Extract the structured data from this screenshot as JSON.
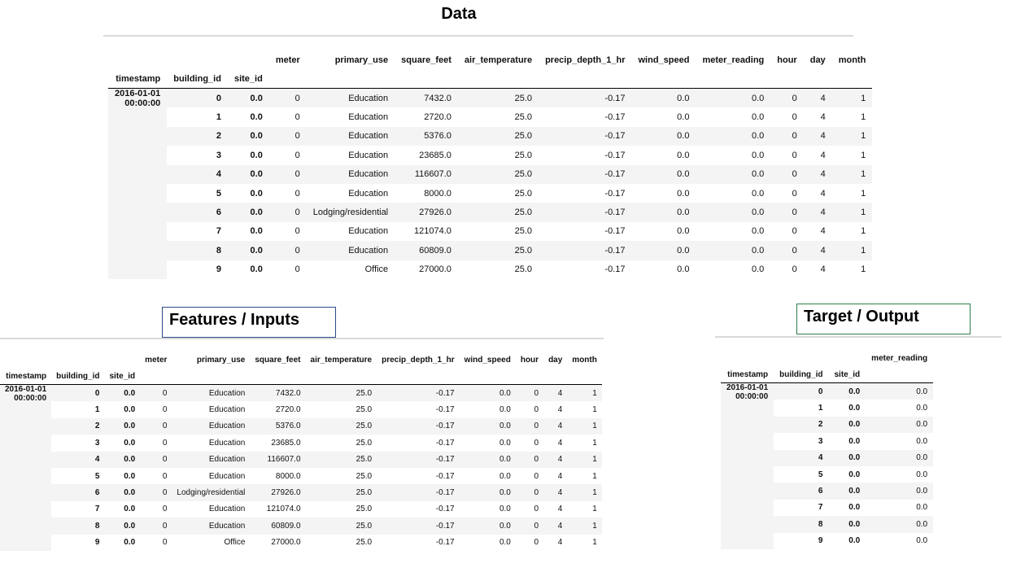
{
  "titles": {
    "data": "Data",
    "features": "Features / Inputs",
    "target": "Target / Output"
  },
  "index_headers": [
    "timestamp",
    "building_id",
    "site_id"
  ],
  "timestamp": {
    "date": "2016-01-01",
    "time": "00:00:00"
  },
  "data_table": {
    "columns": [
      "meter",
      "primary_use",
      "square_feet",
      "air_temperature",
      "precip_depth_1_hr",
      "wind_speed",
      "meter_reading",
      "hour",
      "day",
      "month"
    ],
    "rows": [
      {
        "building_id": "0",
        "site_id": "0.0",
        "cells": [
          "0",
          "Education",
          "7432.0",
          "25.0",
          "-0.17",
          "0.0",
          "0.0",
          "0",
          "4",
          "1"
        ]
      },
      {
        "building_id": "1",
        "site_id": "0.0",
        "cells": [
          "0",
          "Education",
          "2720.0",
          "25.0",
          "-0.17",
          "0.0",
          "0.0",
          "0",
          "4",
          "1"
        ]
      },
      {
        "building_id": "2",
        "site_id": "0.0",
        "cells": [
          "0",
          "Education",
          "5376.0",
          "25.0",
          "-0.17",
          "0.0",
          "0.0",
          "0",
          "4",
          "1"
        ]
      },
      {
        "building_id": "3",
        "site_id": "0.0",
        "cells": [
          "0",
          "Education",
          "23685.0",
          "25.0",
          "-0.17",
          "0.0",
          "0.0",
          "0",
          "4",
          "1"
        ]
      },
      {
        "building_id": "4",
        "site_id": "0.0",
        "cells": [
          "0",
          "Education",
          "116607.0",
          "25.0",
          "-0.17",
          "0.0",
          "0.0",
          "0",
          "4",
          "1"
        ]
      },
      {
        "building_id": "5",
        "site_id": "0.0",
        "cells": [
          "0",
          "Education",
          "8000.0",
          "25.0",
          "-0.17",
          "0.0",
          "0.0",
          "0",
          "4",
          "1"
        ]
      },
      {
        "building_id": "6",
        "site_id": "0.0",
        "cells": [
          "0",
          "Lodging/residential",
          "27926.0",
          "25.0",
          "-0.17",
          "0.0",
          "0.0",
          "0",
          "4",
          "1"
        ]
      },
      {
        "building_id": "7",
        "site_id": "0.0",
        "cells": [
          "0",
          "Education",
          "121074.0",
          "25.0",
          "-0.17",
          "0.0",
          "0.0",
          "0",
          "4",
          "1"
        ]
      },
      {
        "building_id": "8",
        "site_id": "0.0",
        "cells": [
          "0",
          "Education",
          "60809.0",
          "25.0",
          "-0.17",
          "0.0",
          "0.0",
          "0",
          "4",
          "1"
        ]
      },
      {
        "building_id": "9",
        "site_id": "0.0",
        "cells": [
          "0",
          "Office",
          "27000.0",
          "25.0",
          "-0.17",
          "0.0",
          "0.0",
          "0",
          "4",
          "1"
        ]
      }
    ]
  },
  "features_table": {
    "columns": [
      "meter",
      "primary_use",
      "square_feet",
      "air_temperature",
      "precip_depth_1_hr",
      "wind_speed",
      "hour",
      "day",
      "month"
    ],
    "rows": [
      {
        "building_id": "0",
        "site_id": "0.0",
        "cells": [
          "0",
          "Education",
          "7432.0",
          "25.0",
          "-0.17",
          "0.0",
          "0",
          "4",
          "1"
        ]
      },
      {
        "building_id": "1",
        "site_id": "0.0",
        "cells": [
          "0",
          "Education",
          "2720.0",
          "25.0",
          "-0.17",
          "0.0",
          "0",
          "4",
          "1"
        ]
      },
      {
        "building_id": "2",
        "site_id": "0.0",
        "cells": [
          "0",
          "Education",
          "5376.0",
          "25.0",
          "-0.17",
          "0.0",
          "0",
          "4",
          "1"
        ]
      },
      {
        "building_id": "3",
        "site_id": "0.0",
        "cells": [
          "0",
          "Education",
          "23685.0",
          "25.0",
          "-0.17",
          "0.0",
          "0",
          "4",
          "1"
        ]
      },
      {
        "building_id": "4",
        "site_id": "0.0",
        "cells": [
          "0",
          "Education",
          "116607.0",
          "25.0",
          "-0.17",
          "0.0",
          "0",
          "4",
          "1"
        ]
      },
      {
        "building_id": "5",
        "site_id": "0.0",
        "cells": [
          "0",
          "Education",
          "8000.0",
          "25.0",
          "-0.17",
          "0.0",
          "0",
          "4",
          "1"
        ]
      },
      {
        "building_id": "6",
        "site_id": "0.0",
        "cells": [
          "0",
          "Lodging/residential",
          "27926.0",
          "25.0",
          "-0.17",
          "0.0",
          "0",
          "4",
          "1"
        ]
      },
      {
        "building_id": "7",
        "site_id": "0.0",
        "cells": [
          "0",
          "Education",
          "121074.0",
          "25.0",
          "-0.17",
          "0.0",
          "0",
          "4",
          "1"
        ]
      },
      {
        "building_id": "8",
        "site_id": "0.0",
        "cells": [
          "0",
          "Education",
          "60809.0",
          "25.0",
          "-0.17",
          "0.0",
          "0",
          "4",
          "1"
        ]
      },
      {
        "building_id": "9",
        "site_id": "0.0",
        "cells": [
          "0",
          "Office",
          "27000.0",
          "25.0",
          "-0.17",
          "0.0",
          "0",
          "4",
          "1"
        ]
      }
    ]
  },
  "target_table": {
    "columns": [
      "meter_reading"
    ],
    "rows": [
      {
        "building_id": "0",
        "site_id": "0.0",
        "cells": [
          "0.0"
        ]
      },
      {
        "building_id": "1",
        "site_id": "0.0",
        "cells": [
          "0.0"
        ]
      },
      {
        "building_id": "2",
        "site_id": "0.0",
        "cells": [
          "0.0"
        ]
      },
      {
        "building_id": "3",
        "site_id": "0.0",
        "cells": [
          "0.0"
        ]
      },
      {
        "building_id": "4",
        "site_id": "0.0",
        "cells": [
          "0.0"
        ]
      },
      {
        "building_id": "5",
        "site_id": "0.0",
        "cells": [
          "0.0"
        ]
      },
      {
        "building_id": "6",
        "site_id": "0.0",
        "cells": [
          "0.0"
        ]
      },
      {
        "building_id": "7",
        "site_id": "0.0",
        "cells": [
          "0.0"
        ]
      },
      {
        "building_id": "8",
        "site_id": "0.0",
        "cells": [
          "0.0"
        ]
      },
      {
        "building_id": "9",
        "site_id": "0.0",
        "cells": [
          "0.0"
        ]
      }
    ]
  }
}
